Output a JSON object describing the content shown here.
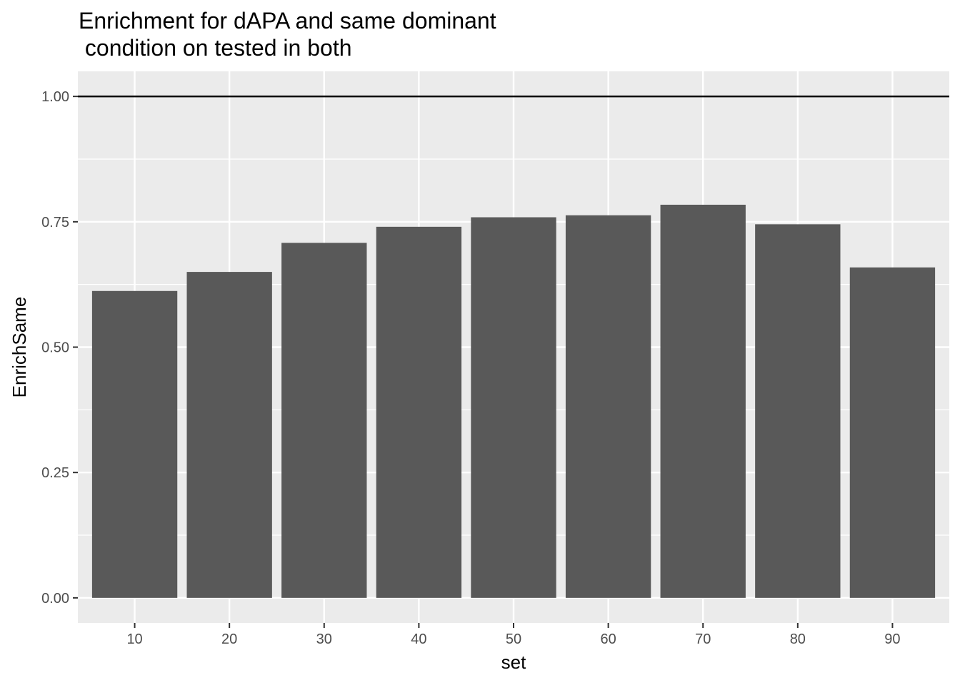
{
  "chart_data": {
    "type": "bar",
    "title_lines": [
      "Enrichment for dAPA and same dominant",
      " condition on tested in both"
    ],
    "xlabel": "set",
    "ylabel": "EnrichSame",
    "categories": [
      "10",
      "20",
      "30",
      "40",
      "50",
      "60",
      "70",
      "80",
      "90"
    ],
    "values": [
      0.612,
      0.65,
      0.708,
      0.74,
      0.759,
      0.763,
      0.784,
      0.745,
      0.659
    ],
    "ylim": [
      -0.05,
      1.05
    ],
    "yticks": [
      0.0,
      0.25,
      0.5,
      0.75,
      1.0
    ],
    "ytick_labels": [
      "0.00",
      "0.25",
      "0.50",
      "0.75",
      "1.00"
    ],
    "reference_line": 1.0,
    "grid": true,
    "colors": {
      "panel_background": "#ebebeb",
      "grid_major": "#ffffff",
      "bar_fill": "#595959",
      "reference_line": "#000000",
      "tick_text": "#4d4d4d"
    }
  }
}
